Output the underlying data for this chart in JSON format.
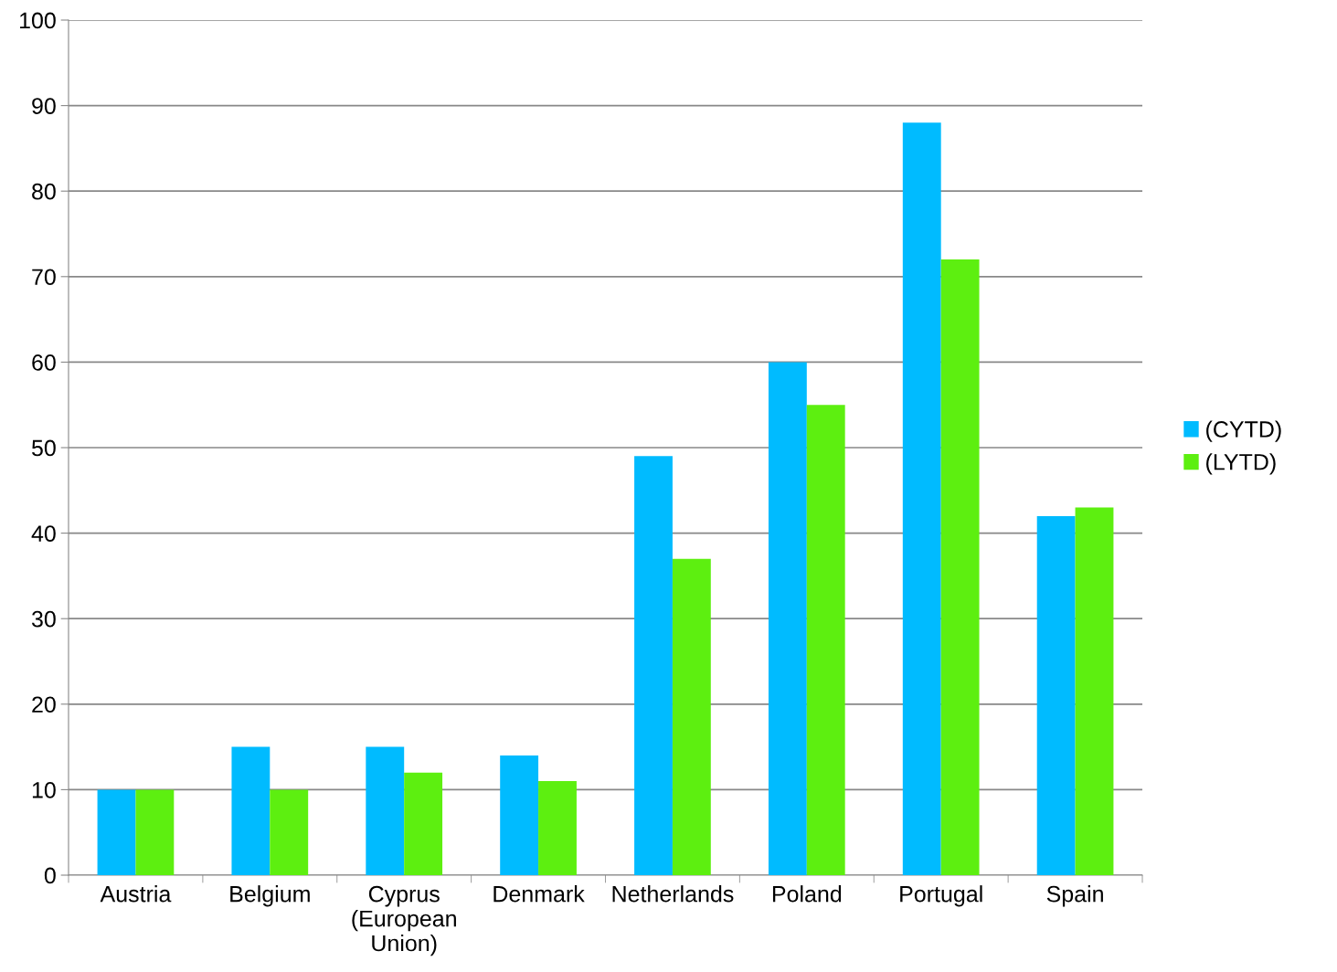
{
  "chart_data": {
    "type": "bar",
    "categories": [
      "Austria",
      "Belgium",
      "Cyprus\n(European\nUnion)",
      "Denmark",
      "Netherlands",
      "Poland",
      "Portugal",
      "Spain"
    ],
    "series": [
      {
        "name": "(CYTD)",
        "color": "#00bbff",
        "values": [
          10,
          15,
          15,
          14,
          49,
          60,
          88,
          42
        ]
      },
      {
        "name": "(LYTD)",
        "color": "#5def10",
        "values": [
          10,
          10,
          12,
          11,
          37,
          55,
          72,
          43
        ]
      }
    ],
    "ylim": [
      0,
      100
    ],
    "yticks": [
      0,
      10,
      20,
      30,
      40,
      50,
      60,
      70,
      80,
      90,
      100
    ],
    "grid": "y",
    "legend": "right"
  }
}
